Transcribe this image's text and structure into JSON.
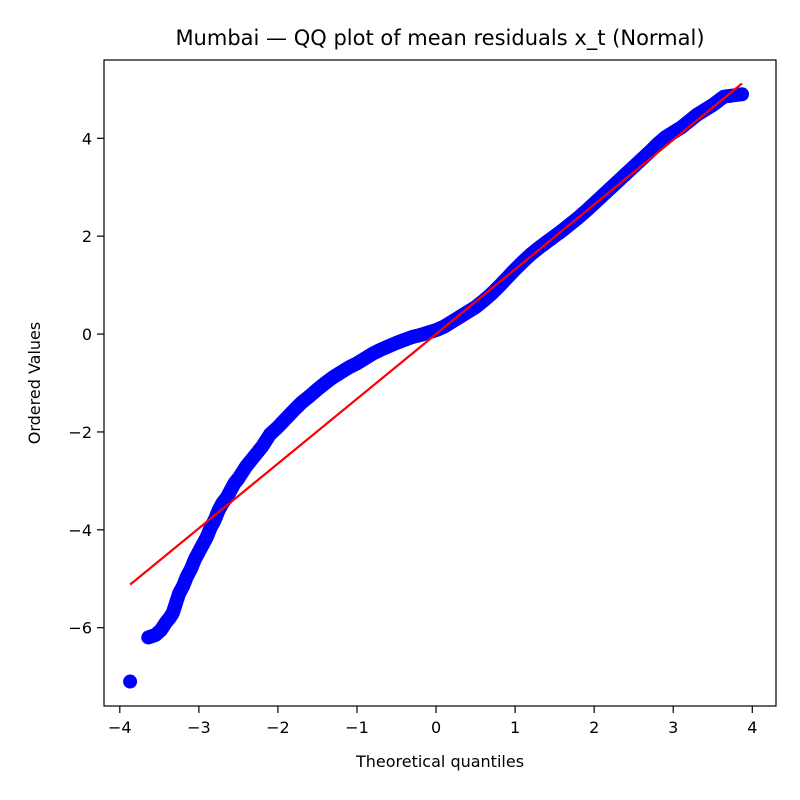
{
  "chart_data": {
    "type": "scatter",
    "title": "Mumbai — QQ plot of mean residuals x_t (Normal)",
    "xlabel": "Theoretical quantiles",
    "ylabel": "Ordered Values",
    "xlim": [
      -4.2,
      4.3
    ],
    "ylim": [
      -7.6,
      5.6
    ],
    "xticks": [
      -4,
      -3,
      -2,
      -1,
      0,
      1,
      2,
      3,
      4
    ],
    "xtick_labels": [
      "−4",
      "−3",
      "−2",
      "−1",
      "0",
      "1",
      "2",
      "3",
      "4"
    ],
    "yticks": [
      -6,
      -4,
      -2,
      0,
      2,
      4
    ],
    "ytick_labels": [
      "−6",
      "−4",
      "−2",
      "0",
      "2",
      "4"
    ],
    "grid": false,
    "series": [
      {
        "kind": "points",
        "color": "#0000ff",
        "x": [
          -3.87,
          -3.64,
          -3.55,
          -3.48,
          -3.42,
          -3.37,
          -3.33,
          -3.29,
          -3.25,
          -3.2,
          -3.15,
          -3.1,
          -3.05,
          -3.0,
          -2.95,
          -2.9,
          -2.85,
          -2.8,
          -2.75,
          -2.7,
          -2.65,
          -2.6,
          -2.55,
          -2.5,
          -2.4,
          -2.3,
          -2.2,
          -2.1,
          -2.0,
          -1.9,
          -1.8,
          -1.7,
          -1.6,
          -1.5,
          -1.4,
          -1.3,
          -1.2,
          -1.1,
          -1.0,
          -0.9,
          -0.8,
          -0.7,
          -0.6,
          -0.5,
          -0.4,
          -0.3,
          -0.2,
          -0.1,
          0.0,
          0.1,
          0.2,
          0.3,
          0.4,
          0.5,
          0.6,
          0.7,
          0.8,
          0.9,
          1.0,
          1.1,
          1.2,
          1.3,
          1.4,
          1.5,
          1.6,
          1.7,
          1.8,
          1.9,
          2.0,
          2.1,
          2.2,
          2.3,
          2.4,
          2.5,
          2.6,
          2.7,
          2.8,
          2.9,
          3.0,
          3.1,
          3.2,
          3.3,
          3.4,
          3.5,
          3.64,
          3.87
        ],
        "y": [
          -7.1,
          -6.2,
          -6.15,
          -6.05,
          -5.9,
          -5.8,
          -5.7,
          -5.5,
          -5.3,
          -5.15,
          -4.95,
          -4.8,
          -4.6,
          -4.45,
          -4.3,
          -4.15,
          -3.95,
          -3.8,
          -3.6,
          -3.45,
          -3.35,
          -3.2,
          -3.05,
          -2.95,
          -2.7,
          -2.5,
          -2.3,
          -2.05,
          -1.9,
          -1.73,
          -1.56,
          -1.4,
          -1.27,
          -1.13,
          -1.0,
          -0.88,
          -0.78,
          -0.68,
          -0.6,
          -0.5,
          -0.4,
          -0.32,
          -0.25,
          -0.18,
          -0.12,
          -0.06,
          -0.02,
          0.03,
          0.08,
          0.15,
          0.25,
          0.35,
          0.45,
          0.55,
          0.68,
          0.82,
          0.98,
          1.15,
          1.32,
          1.48,
          1.63,
          1.76,
          1.88,
          2.0,
          2.12,
          2.25,
          2.38,
          2.52,
          2.67,
          2.82,
          2.97,
          3.12,
          3.27,
          3.42,
          3.57,
          3.72,
          3.88,
          4.02,
          4.12,
          4.22,
          4.35,
          4.48,
          4.58,
          4.68,
          4.85,
          4.9
        ]
      },
      {
        "kind": "line",
        "color": "#ff0000",
        "x": [
          -3.87,
          3.87
        ],
        "y": [
          -5.12,
          5.12
        ]
      }
    ]
  }
}
